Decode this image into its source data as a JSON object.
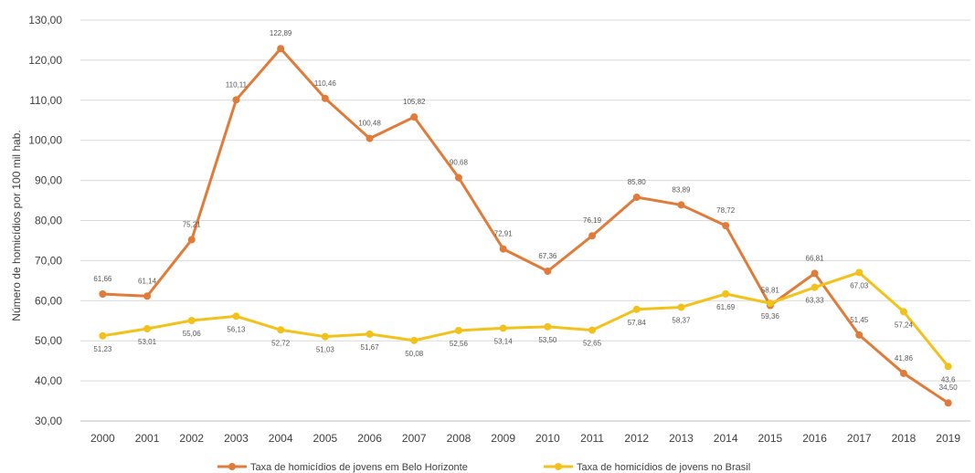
{
  "chart_data": {
    "type": "line",
    "title": "",
    "xlabel": "",
    "ylabel": "Número de homicídios por 100 mil hab.",
    "ylim": [
      30,
      130
    ],
    "yticks": [
      "30,00",
      "40,00",
      "50,00",
      "60,00",
      "70,00",
      "80,00",
      "90,00",
      "100,00",
      "110,00",
      "120,00",
      "130,00"
    ],
    "ytick_values": [
      30,
      40,
      50,
      60,
      70,
      80,
      90,
      100,
      110,
      120,
      130
    ],
    "grid": true,
    "legend_position": "bottom",
    "categories": [
      "2000",
      "2001",
      "2002",
      "2003",
      "2004",
      "2005",
      "2006",
      "2007",
      "2008",
      "2009",
      "2010",
      "2011",
      "2012",
      "2013",
      "2014",
      "2015",
      "2016",
      "2017",
      "2018",
      "2019"
    ],
    "series": [
      {
        "name": "Taxa de homicídios de jovens em Belo Horizonte",
        "color": "#E07B39",
        "label_position": "above",
        "values": [
          61.66,
          61.14,
          75.21,
          110.11,
          122.89,
          110.46,
          100.48,
          105.82,
          90.68,
          72.91,
          67.36,
          76.19,
          85.8,
          83.89,
          78.72,
          58.81,
          66.81,
          51.45,
          41.86,
          34.5
        ],
        "labels": [
          "61,66",
          "61,14",
          "75,21",
          "110,11",
          "122,89",
          "110,46",
          "100,48",
          "105,82",
          "90,68",
          "72,91",
          "67,36",
          "76,19",
          "85,80",
          "83,89",
          "78,72",
          "58,81",
          "66,81",
          "51,45",
          "41,86",
          "34,50"
        ]
      },
      {
        "name": "Taxa de homicídios de jovens no Brasil",
        "color": "#F2C21A",
        "label_position": "below",
        "values": [
          51.23,
          53.01,
          55.06,
          56.13,
          52.72,
          51.03,
          51.67,
          50.08,
          52.56,
          53.14,
          53.5,
          52.65,
          57.84,
          58.37,
          61.69,
          59.36,
          63.33,
          67.03,
          57.24,
          43.6
        ],
        "labels": [
          "51,23",
          "53,01",
          "55,06",
          "56,13",
          "52,72",
          "51,03",
          "51,67",
          "50,08",
          "52,56",
          "53,14",
          "53,50",
          "52,65",
          "57,84",
          "58,37",
          "61,69",
          "59,36",
          "63,33",
          "67,03",
          "57,24",
          "43,6"
        ]
      }
    ]
  }
}
